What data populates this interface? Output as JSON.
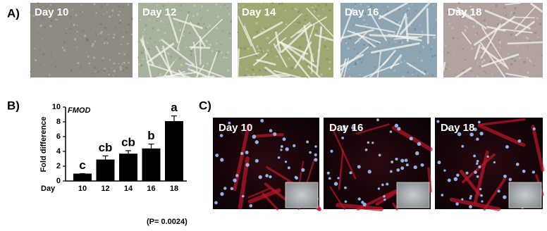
{
  "panel_a": {
    "label": "A)",
    "images": [
      {
        "label": "Day 10"
      },
      {
        "label": "Day 12"
      },
      {
        "label": "Day 14"
      },
      {
        "label": "Day 16"
      },
      {
        "label": "Day 18"
      }
    ]
  },
  "panel_b": {
    "label": "B)"
  },
  "chart_data": {
    "type": "bar",
    "title": "FMOD",
    "ylabel": "Fold difference",
    "xlabel": "Day",
    "categories": [
      "10",
      "12",
      "14",
      "16",
      "18"
    ],
    "values": [
      1,
      2.9,
      3.7,
      4.4,
      8.1
    ],
    "errors": [
      0,
      0.5,
      0.4,
      0.6,
      0.7
    ],
    "significance_letters": [
      "c",
      "cb",
      "cb",
      "b",
      "a"
    ],
    "color": "#000000",
    "ylim": [
      0,
      10
    ],
    "yticks": [
      0,
      2,
      4,
      6,
      8,
      10
    ],
    "note": "(P= 0.0024)"
  },
  "panel_c": {
    "label": "C)",
    "images": [
      {
        "label": "Day 10"
      },
      {
        "label": "Day 16"
      },
      {
        "label": "Day 18"
      }
    ]
  }
}
